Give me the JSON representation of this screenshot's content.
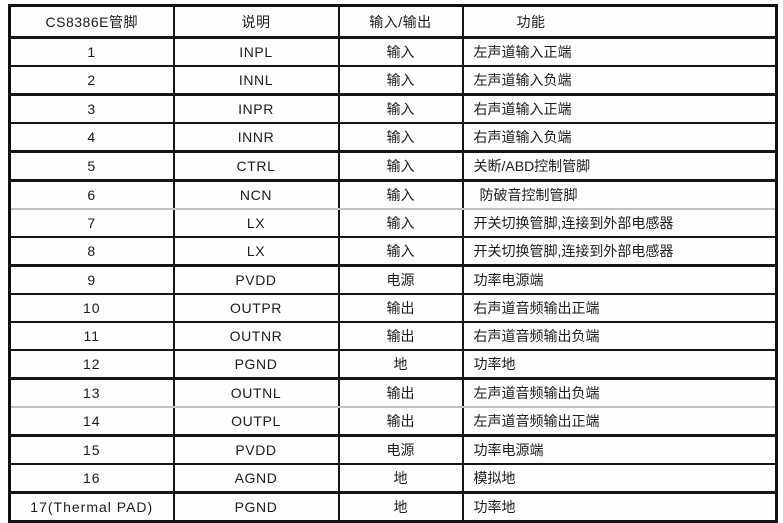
{
  "table": {
    "headers": {
      "pin": "CS8386E管脚",
      "desc": "说明",
      "io": "输入/输出",
      "func": "功能"
    },
    "rows": [
      {
        "pin": "1",
        "desc": "INPL",
        "io": "输入",
        "func": "左声道输入正端"
      },
      {
        "pin": "2",
        "desc": "INNL",
        "io": "输入",
        "func": "左声道输入负端"
      },
      {
        "pin": "3",
        "desc": "INPR",
        "io": "输入",
        "func": "右声道输入正端"
      },
      {
        "pin": "4",
        "desc": "INNR",
        "io": "输入",
        "func": "右声道输入负端"
      },
      {
        "pin": "5",
        "desc": "CTRL",
        "io": "输入",
        "func": "关断/ABD控制管脚"
      },
      {
        "pin": "6",
        "desc": "NCN",
        "io": "输入",
        "func": "防破音控制管脚"
      },
      {
        "pin": "7",
        "desc": "LX",
        "io": "输入",
        "func": "开关切换管脚,连接到外部电感器"
      },
      {
        "pin": "8",
        "desc": "LX",
        "io": "输入",
        "func": "开关切换管脚,连接到外部电感器"
      },
      {
        "pin": "9",
        "desc": "PVDD",
        "io": "电源",
        "func": "功率电源端"
      },
      {
        "pin": "10",
        "desc": "OUTPR",
        "io": "输出",
        "func": "右声道音频输出正端"
      },
      {
        "pin": "11",
        "desc": "OUTNR",
        "io": "输出",
        "func": "右声道音频输出负端"
      },
      {
        "pin": "12",
        "desc": "PGND",
        "io": "地",
        "func": "功率地"
      },
      {
        "pin": "13",
        "desc": "OUTNL",
        "io": "输出",
        "func": "左声道音频输出负端"
      },
      {
        "pin": "14",
        "desc": "OUTPL",
        "io": "输出",
        "func": "左声道音频输出正端"
      },
      {
        "pin": "15",
        "desc": "PVDD",
        "io": "电源",
        "func": "功率电源端"
      },
      {
        "pin": "16",
        "desc": "AGND",
        "io": "地",
        "func": "模拟地"
      },
      {
        "pin": "17(Thermal PAD)",
        "desc": "PGND",
        "io": "地",
        "func": "功率地"
      }
    ]
  }
}
